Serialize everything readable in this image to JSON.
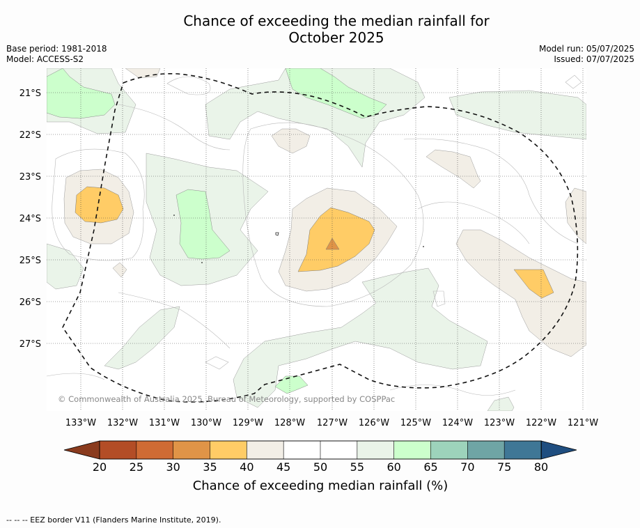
{
  "title_line1": "Chance of exceeding the median rainfall for",
  "title_line2": "October 2025",
  "meta_left": [
    "Base period: 1981-2018",
    "Model: ACCESS-S2"
  ],
  "meta_right": [
    "Model run: 05/07/2025",
    "Issued: 07/07/2025"
  ],
  "copyright": "© Commonwealth of Australia 2025, Bureau of Meteorology, supported by COSPPac",
  "lat_labels": [
    "21°S",
    "22°S",
    "23°S",
    "24°S",
    "25°S",
    "26°S",
    "27°S"
  ],
  "lon_labels": [
    "133°W",
    "132°W",
    "131°W",
    "130°W",
    "129°W",
    "128°W",
    "127°W",
    "126°W",
    "125°W",
    "124°W",
    "123°W",
    "122°W",
    "121°W"
  ],
  "colorbar": {
    "label": "Chance of exceeding median rainfall (%)",
    "ticks": [
      "20",
      "25",
      "30",
      "35",
      "40",
      "45",
      "50",
      "55",
      "60",
      "65",
      "70",
      "75",
      "80"
    ],
    "colors": [
      "#b34d26",
      "#cf6b34",
      "#e09447",
      "#ffcc66",
      "#f2eee6",
      "#ffffff",
      "#ffffff",
      "#eaf4e9",
      "#ccffcc",
      "#9dd3bb",
      "#6fa5a5",
      "#3f7796"
    ],
    "low_extend_color": "#8a3b1e",
    "high_extend_color": "#1f4e80"
  },
  "footnote": "--  --  -- EEZ border V11 (Flanders Marine Institute, 2019)."
}
